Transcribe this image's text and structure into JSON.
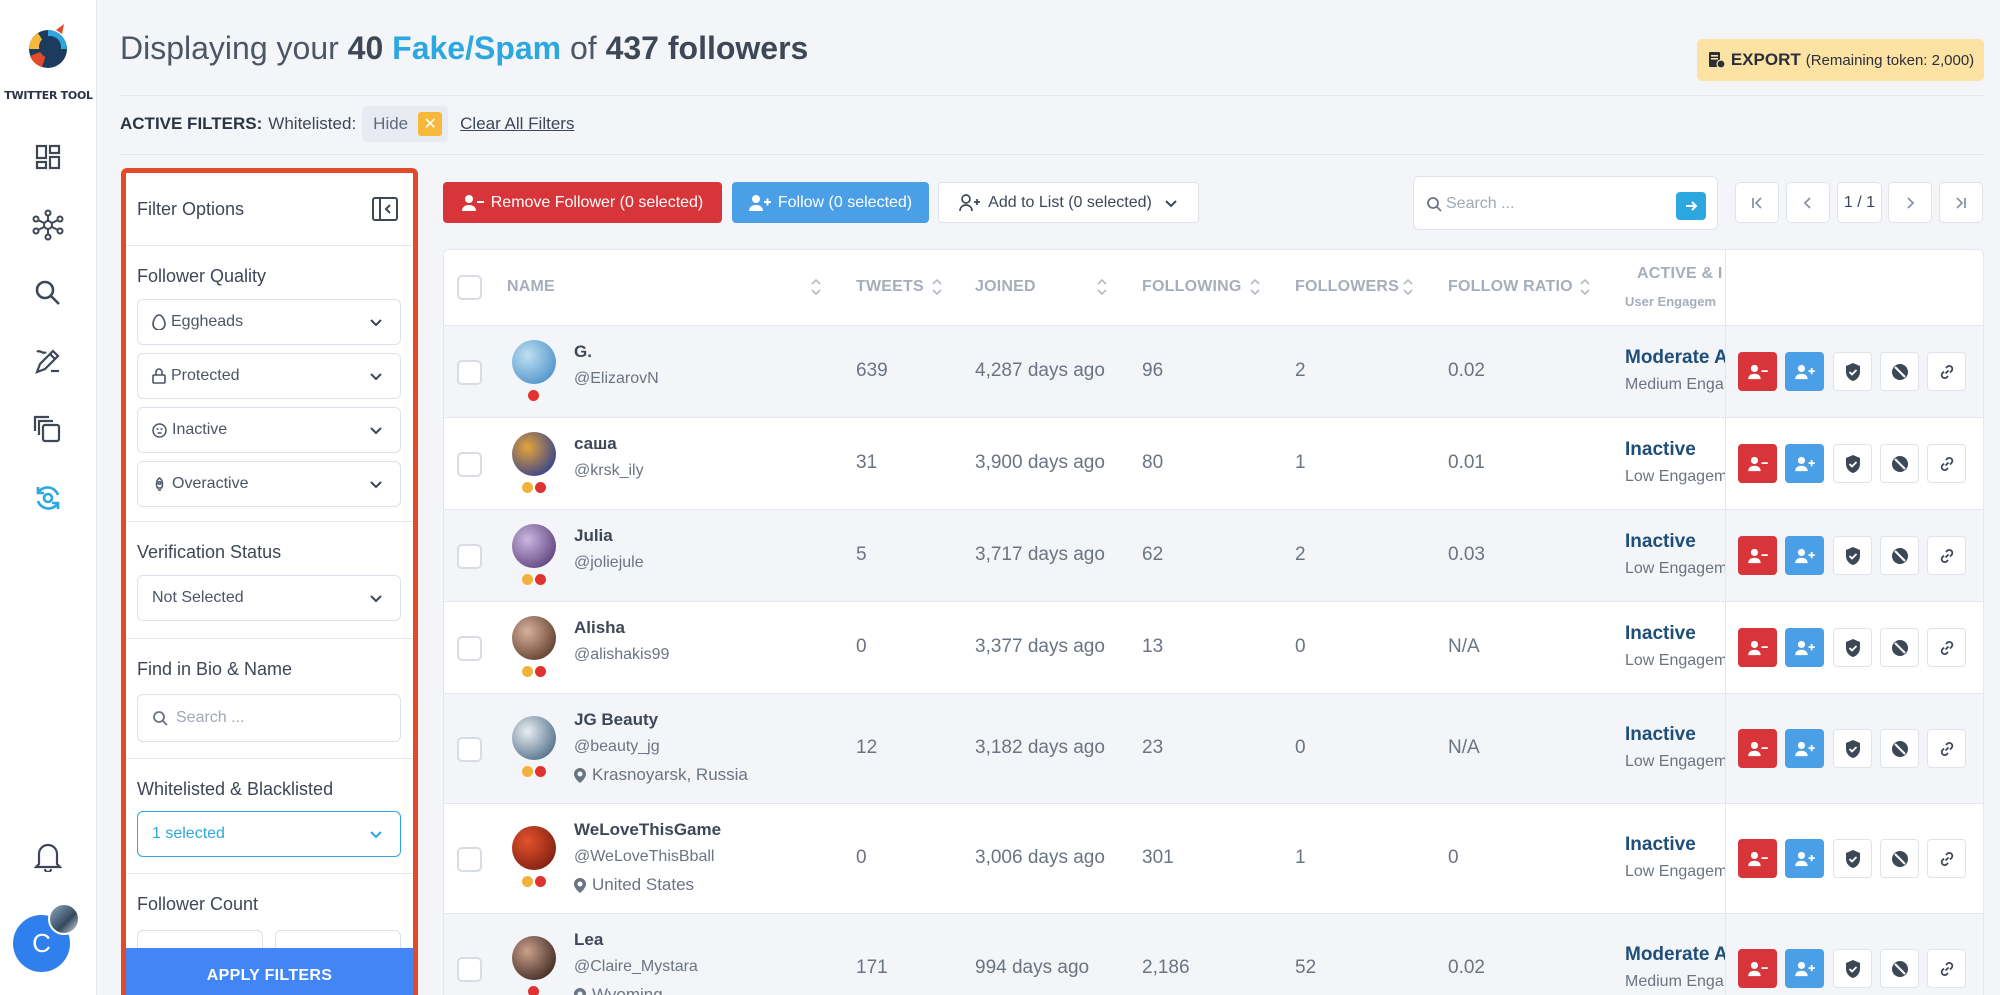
{
  "app": {
    "logo_text": "TWITTER TOOL",
    "avatar_letter": "C"
  },
  "sidebar": {
    "items": [
      {
        "icon": "dashboard-icon"
      },
      {
        "icon": "network-icon"
      },
      {
        "icon": "search-icon"
      },
      {
        "icon": "edit-icon"
      },
      {
        "icon": "copy-icon"
      },
      {
        "icon": "sync-icon",
        "active": true
      }
    ],
    "bell_icon": "bell-icon"
  },
  "header": {
    "title_prefix": "Displaying your",
    "count": "40",
    "category": "Fake/Spam",
    "title_mid": "of",
    "total": "437 followers",
    "export_label": "EXPORT",
    "export_note": "(Remaining token: 2,000)"
  },
  "active_filters": {
    "label": "ACTIVE FILTERS:",
    "key": "Whitelisted:",
    "value": "Hide",
    "clear_label": "Clear All Filters"
  },
  "filter_panel": {
    "title": "Filter Options",
    "follower_quality": {
      "title": "Follower Quality",
      "options": [
        "Eggheads",
        "Protected",
        "Inactive",
        "Overactive"
      ]
    },
    "verification": {
      "title": "Verification Status",
      "value": "Not Selected"
    },
    "bio_search": {
      "title": "Find in Bio & Name",
      "placeholder": "Search ..."
    },
    "lists": {
      "title": "Whitelisted & Blacklisted",
      "value": "1 selected"
    },
    "follower_count": {
      "title": "Follower Count"
    },
    "apply_label": "APPLY FILTERS"
  },
  "toolbar": {
    "remove_label": "Remove Follower (0 selected)",
    "follow_label": "Follow (0 selected)",
    "list_label": "Add to List (0 selected)",
    "search_placeholder": "Search ...",
    "page_label": "1 / 1"
  },
  "table": {
    "columns": [
      "NAME",
      "TWEETS",
      "JOINED",
      "FOLLOWING",
      "FOLLOWERS",
      "FOLLOW RATIO",
      "ACTIVE & I"
    ],
    "active_sub": "User Engagem",
    "rows": [
      {
        "name": "G.",
        "handle": "@ElizarovN",
        "location": "",
        "tweets": "639",
        "joined": "4,287 days ago",
        "following": "96",
        "followers": "2",
        "ratio": "0.02",
        "activity": "Moderate A",
        "engagement": "Medium Enga",
        "dots": [
          "red"
        ],
        "avatar_colors": [
          "#bfe0f2",
          "#4a90c8"
        ]
      },
      {
        "name": "саша",
        "handle": "@krsk_ily",
        "location": "",
        "tweets": "31",
        "joined": "3,900 days ago",
        "following": "80",
        "followers": "1",
        "ratio": "0.01",
        "activity": "Inactive",
        "engagement": "Low Engagem",
        "dots": [
          "amber",
          "red"
        ],
        "avatar_colors": [
          "#e6a33a",
          "#2c3e8f"
        ]
      },
      {
        "name": "Julia",
        "handle": "@joliejule",
        "location": "",
        "tweets": "5",
        "joined": "3,717 days ago",
        "following": "62",
        "followers": "2",
        "ratio": "0.03",
        "activity": "Inactive",
        "engagement": "Low Engagem",
        "dots": [
          "amber",
          "red"
        ],
        "avatar_colors": [
          "#c9b7e0",
          "#5b3f7a"
        ]
      },
      {
        "name": "Alisha",
        "handle": "@alishakis99",
        "location": "",
        "tweets": "0",
        "joined": "3,377 days ago",
        "following": "13",
        "followers": "0",
        "ratio": "N/A",
        "activity": "Inactive",
        "engagement": "Low Engagem",
        "dots": [
          "amber",
          "red"
        ],
        "avatar_colors": [
          "#d8b09a",
          "#5a3a2a"
        ]
      },
      {
        "name": "JG Beauty",
        "handle": "@beauty_jg",
        "location": "Krasnoyarsk, Russia",
        "tweets": "12",
        "joined": "3,182 days ago",
        "following": "23",
        "followers": "0",
        "ratio": "N/A",
        "activity": "Inactive",
        "engagement": "Low Engagem",
        "dots": [
          "amber",
          "red"
        ],
        "avatar_colors": [
          "#e8eef3",
          "#4b6a85"
        ]
      },
      {
        "name": "WeLoveThisGame",
        "handle": "@WeLoveThisBball",
        "location": "United States",
        "tweets": "0",
        "joined": "3,006 days ago",
        "following": "301",
        "followers": "1",
        "ratio": "0",
        "activity": "Inactive",
        "engagement": "Low Engagem",
        "dots": [
          "amber",
          "red"
        ],
        "avatar_colors": [
          "#e4522c",
          "#7a1e10"
        ]
      },
      {
        "name": "Lea",
        "handle": "@Claire_Mystara",
        "location": "Wyoming",
        "tweets": "171",
        "joined": "994 days ago",
        "following": "2,186",
        "followers": "52",
        "ratio": "0.02",
        "activity": "Moderate A",
        "engagement": "Medium Enga",
        "dots": [
          "red"
        ],
        "avatar_colors": [
          "#c9a08a",
          "#3a2520"
        ]
      }
    ]
  },
  "colors": {
    "accent": "#2ca7e0",
    "danger": "#d8353a",
    "primary": "#4a9fe6",
    "highlight": "#e24a2a",
    "export_bg": "#fde3a3"
  }
}
